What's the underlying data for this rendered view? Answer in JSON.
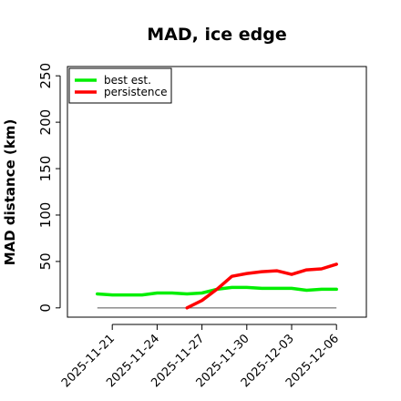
{
  "chart_data": {
    "type": "line",
    "title": "MAD, ice edge",
    "xlabel": "",
    "ylabel": "MAD distance (km)",
    "ylim": [
      -10,
      260
    ],
    "yticks": [
      0,
      50,
      100,
      150,
      200,
      250
    ],
    "x_range": [
      "2025-11-18",
      "2025-12-08"
    ],
    "x_ticks": [
      "2025-11-21",
      "2025-11-24",
      "2025-11-27",
      "2025-11-30",
      "2025-12-03",
      "2025-12-06"
    ],
    "legend_position": "top-left",
    "grid": false,
    "zero_line": true,
    "series": [
      {
        "name": "best est.",
        "color": "#00ee00",
        "x": [
          "2025-11-20",
          "2025-11-21",
          "2025-11-22",
          "2025-11-23",
          "2025-11-24",
          "2025-11-25",
          "2025-11-26",
          "2025-11-27",
          "2025-11-28",
          "2025-11-29",
          "2025-11-30",
          "2025-12-01",
          "2025-12-02",
          "2025-12-03",
          "2025-12-04",
          "2025-12-05",
          "2025-12-06"
        ],
        "values": [
          15,
          14,
          14,
          14,
          16,
          16,
          15,
          16,
          20,
          22,
          22,
          21,
          21,
          21,
          19,
          20,
          20
        ]
      },
      {
        "name": "persistence",
        "color": "#ff0000",
        "x": [
          "2025-11-26",
          "2025-11-27",
          "2025-11-28",
          "2025-11-29",
          "2025-11-30",
          "2025-12-01",
          "2025-12-02",
          "2025-12-03",
          "2025-12-04",
          "2025-12-05",
          "2025-12-06"
        ],
        "values": [
          0,
          8,
          20,
          34,
          37,
          39,
          40,
          36,
          41,
          42,
          47
        ]
      }
    ]
  }
}
